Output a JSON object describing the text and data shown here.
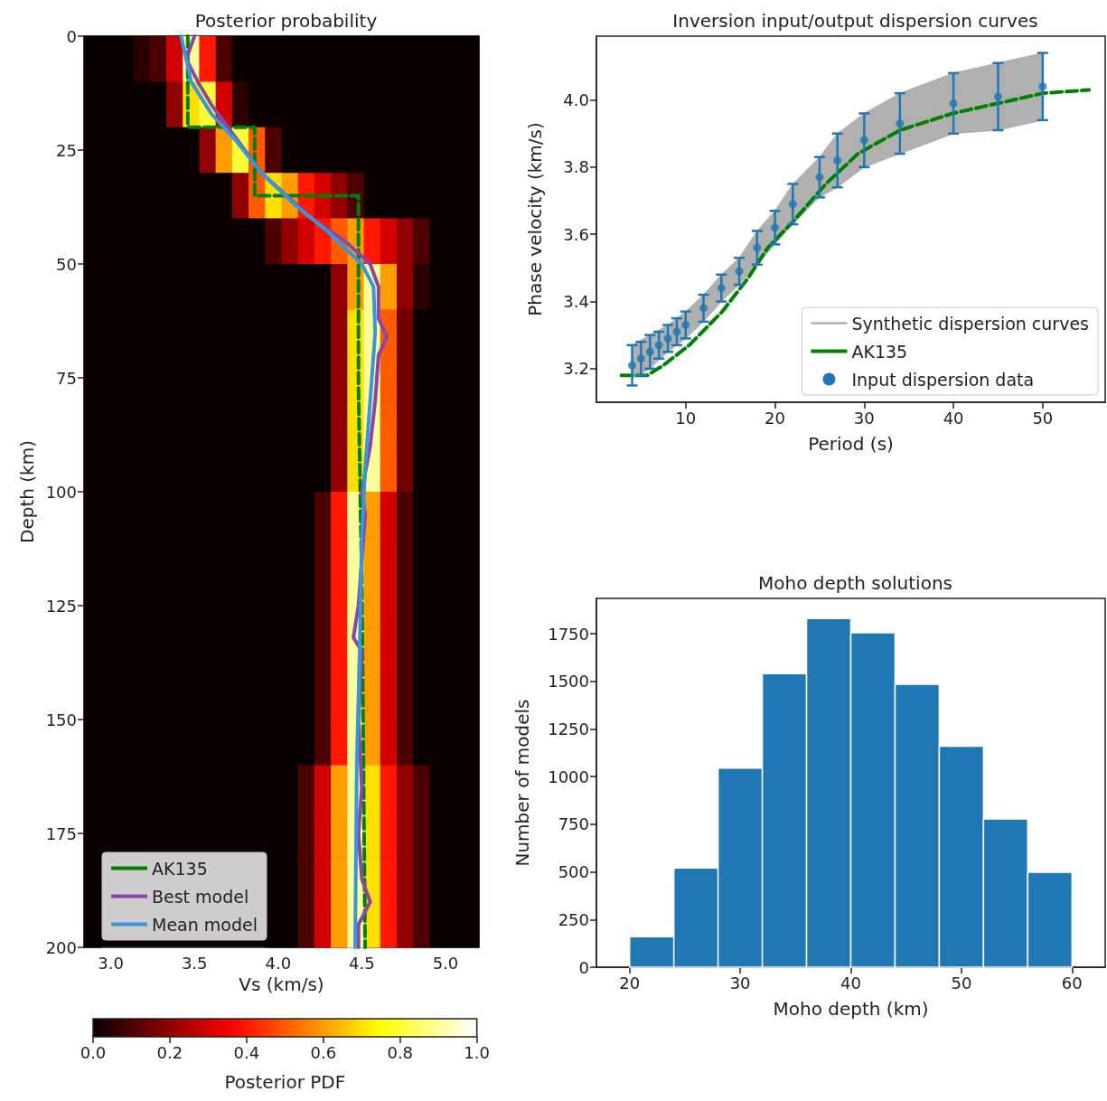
{
  "chart_data": [
    {
      "type": "heatmap",
      "title": "Posterior probability",
      "xlabel": "Vs (km/s)",
      "ylabel": "Depth (km)",
      "clabel": "Posterior PDF",
      "legend": "bottom left",
      "grid": false,
      "xlim": [
        2.84,
        5.2
      ],
      "ylim": [
        200,
        0
      ],
      "xticks": [
        {
          "value": 3,
          "label": "3.0"
        },
        {
          "value": 3.5,
          "label": "3.5"
        },
        {
          "value": 4,
          "label": "4.0"
        },
        {
          "value": 4.5,
          "label": "4.5"
        },
        {
          "value": 5,
          "label": "5.0"
        }
      ],
      "yticks": [
        0,
        25,
        50,
        75,
        100,
        125,
        150,
        175,
        200
      ],
      "clim": [
        0,
        1
      ],
      "cticks": [
        {
          "value": 0,
          "label": "0.0"
        },
        {
          "value": 0.2,
          "label": "0.2"
        },
        {
          "value": 0.4,
          "label": "0.4"
        },
        {
          "value": 0.6,
          "label": "0.6"
        },
        {
          "value": 0.8,
          "label": "0.8"
        },
        {
          "value": 1,
          "label": "1.0"
        }
      ],
      "cells": [
        [
          0,
          0,
          0,
          0.05,
          0.1,
          0.3,
          0.9,
          0.4,
          0.1,
          0,
          0,
          0,
          0,
          0,
          0,
          0,
          0,
          0,
          0,
          0,
          0,
          0,
          0,
          0
        ],
        [
          0,
          0,
          0,
          0,
          0,
          0.2,
          0.7,
          0.8,
          0.3,
          0.05,
          0,
          0,
          0,
          0,
          0,
          0,
          0,
          0,
          0,
          0,
          0,
          0,
          0,
          0
        ],
        [
          0,
          0,
          0,
          0,
          0,
          0,
          0,
          0.2,
          0.6,
          0.8,
          0.5,
          0.1,
          0,
          0,
          0,
          0,
          0,
          0,
          0,
          0,
          0,
          0,
          0,
          0
        ],
        [
          0,
          0,
          0,
          0,
          0,
          0,
          0,
          0,
          0,
          0.2,
          0.5,
          0.7,
          0.6,
          0.4,
          0.3,
          0.2,
          0.1,
          0,
          0,
          0,
          0,
          0,
          0,
          0
        ],
        [
          0,
          0,
          0,
          0,
          0,
          0,
          0,
          0,
          0,
          0,
          0,
          0.1,
          0.2,
          0.3,
          0.4,
          0.5,
          0.6,
          0.4,
          0.3,
          0.2,
          0.1,
          0,
          0,
          0
        ],
        [
          0,
          0,
          0,
          0,
          0,
          0,
          0,
          0,
          0,
          0,
          0,
          0,
          0,
          0,
          0,
          0.2,
          0.6,
          0.9,
          0.6,
          0.2,
          0.05,
          0,
          0,
          0
        ],
        [
          0,
          0,
          0,
          0,
          0,
          0,
          0,
          0,
          0,
          0,
          0,
          0,
          0,
          0,
          0,
          0.2,
          0.7,
          0.9,
          0.5,
          0.15,
          0,
          0,
          0,
          0
        ],
        [
          0,
          0,
          0,
          0,
          0,
          0,
          0,
          0,
          0,
          0,
          0,
          0,
          0,
          0,
          0,
          0.2,
          0.7,
          0.9,
          0.5,
          0.15,
          0,
          0,
          0,
          0
        ],
        [
          0,
          0,
          0,
          0,
          0,
          0,
          0,
          0,
          0,
          0,
          0,
          0,
          0,
          0,
          0,
          0.2,
          0.7,
          0.9,
          0.5,
          0.15,
          0,
          0,
          0,
          0
        ],
        [
          0,
          0,
          0,
          0,
          0,
          0,
          0,
          0,
          0,
          0,
          0,
          0,
          0,
          0,
          0,
          0.2,
          0.7,
          0.9,
          0.5,
          0.15,
          0,
          0,
          0,
          0
        ],
        [
          0,
          0,
          0,
          0,
          0,
          0,
          0,
          0,
          0,
          0,
          0,
          0,
          0,
          0,
          0.1,
          0.4,
          0.9,
          0.6,
          0.3,
          0.1,
          0,
          0,
          0,
          0
        ],
        [
          0,
          0,
          0,
          0,
          0,
          0,
          0,
          0,
          0,
          0,
          0,
          0,
          0,
          0,
          0.1,
          0.4,
          0.9,
          0.6,
          0.3,
          0.1,
          0,
          0,
          0,
          0
        ],
        [
          0,
          0,
          0,
          0,
          0,
          0,
          0,
          0,
          0,
          0,
          0,
          0,
          0,
          0,
          0.1,
          0.4,
          0.9,
          0.6,
          0.3,
          0.1,
          0,
          0,
          0,
          0
        ],
        [
          0,
          0,
          0,
          0,
          0,
          0,
          0,
          0,
          0,
          0,
          0,
          0,
          0,
          0,
          0.1,
          0.4,
          0.9,
          0.6,
          0.3,
          0.1,
          0,
          0,
          0,
          0
        ],
        [
          0,
          0,
          0,
          0,
          0,
          0,
          0,
          0,
          0,
          0,
          0,
          0,
          0,
          0,
          0.1,
          0.4,
          0.9,
          0.6,
          0.3,
          0.1,
          0,
          0,
          0,
          0
        ],
        [
          0,
          0,
          0,
          0,
          0,
          0,
          0,
          0,
          0,
          0,
          0,
          0,
          0,
          0,
          0.1,
          0.4,
          0.9,
          0.6,
          0.3,
          0.1,
          0,
          0,
          0,
          0
        ],
        [
          0,
          0,
          0,
          0,
          0,
          0,
          0,
          0,
          0,
          0,
          0,
          0,
          0,
          0.1,
          0.3,
          0.6,
          0.9,
          0.7,
          0.4,
          0.2,
          0.1,
          0,
          0,
          0
        ],
        [
          0,
          0,
          0,
          0,
          0,
          0,
          0,
          0,
          0,
          0,
          0,
          0,
          0,
          0.1,
          0.3,
          0.6,
          0.9,
          0.7,
          0.4,
          0.2,
          0.1,
          0,
          0,
          0
        ],
        [
          0,
          null,
          null,
          null,
          null,
          null,
          null,
          null,
          null,
          null,
          null,
          0,
          0,
          0.1,
          0.3,
          0.6,
          0.9,
          0.7,
          0.4,
          0.2,
          0.1,
          0,
          0,
          0
        ],
        [
          0,
          null,
          null,
          null,
          null,
          null,
          null,
          null,
          null,
          null,
          null,
          0,
          0,
          0.1,
          0.3,
          0.6,
          0.9,
          0.7,
          0.4,
          0.2,
          0.1,
          0,
          0,
          0
        ]
      ],
      "series": [
        {
          "name": "AK135",
          "type": "line",
          "color": "#008000",
          "line_style": "dashed",
          "x": [
            3.46,
            3.46,
            3.86,
            3.86,
            4.48,
            4.48,
            4.5,
            4.52
          ],
          "values": [
            0,
            20,
            20,
            35,
            35,
            77,
            120,
            200
          ]
        },
        {
          "name": "Best model",
          "type": "line",
          "color": "#8e44ad",
          "line_style": "solid",
          "x": [
            3.5,
            3.45,
            3.52,
            3.6,
            3.7,
            3.8,
            3.9,
            4.05,
            4.2,
            4.4,
            4.55,
            4.6,
            4.6,
            4.65,
            4.6,
            4.58,
            4.55,
            4.5,
            4.52,
            4.5,
            4.48,
            4.45,
            4.5,
            4.48,
            4.5,
            4.48,
            4.5,
            4.55,
            4.48,
            4.48
          ],
          "values": [
            0,
            5,
            10,
            15,
            20,
            25,
            30,
            35,
            40,
            45,
            50,
            55,
            62,
            66,
            70,
            80,
            90,
            100,
            105,
            115,
            125,
            132,
            135,
            150,
            165,
            175,
            185,
            190,
            195,
            200
          ]
        },
        {
          "name": "Mean model",
          "type": "line",
          "color": "#3498db",
          "line_style": "solid",
          "x": [
            3.42,
            3.48,
            3.6,
            3.75,
            3.9,
            4.1,
            4.3,
            4.5,
            4.57,
            4.58,
            4.55,
            4.52,
            4.5,
            4.49,
            4.47,
            4.46
          ],
          "values": [
            0,
            10,
            17,
            23,
            30,
            37,
            43,
            50,
            55,
            65,
            80,
            95,
            110,
            130,
            160,
            200
          ]
        }
      ]
    },
    {
      "type": "scatter",
      "title": "Inversion input/output dispersion curves",
      "xlabel": "Period (s)",
      "ylabel": "Phase velocity (km/s)",
      "legend": "bottom right",
      "grid": false,
      "xlim": [
        0,
        57
      ],
      "ylim": [
        3.1,
        4.19
      ],
      "xticks": [
        10,
        20,
        30,
        40,
        50
      ],
      "yticks": [
        {
          "value": 3.2,
          "label": "3.2"
        },
        {
          "value": 3.4,
          "label": "3.4"
        },
        {
          "value": 3.6,
          "label": "3.6"
        },
        {
          "value": 3.8,
          "label": "3.8"
        },
        {
          "value": 4,
          "label": "4.0"
        }
      ],
      "series": [
        {
          "name": "Synthetic dispersion curves",
          "type": "area",
          "color": "#b0b0b0",
          "x": [
            4,
            6,
            8,
            10,
            12,
            14,
            16,
            18,
            20,
            22,
            25,
            27,
            30,
            34,
            40,
            45,
            50
          ],
          "values": [
            null,
            null,
            null,
            null,
            null,
            null,
            null,
            null,
            null,
            null,
            null,
            null,
            null,
            null,
            null,
            null,
            null
          ],
          "lower": [
            3.17,
            3.2,
            3.25,
            3.29,
            3.34,
            3.4,
            3.45,
            3.51,
            3.57,
            3.63,
            3.71,
            3.74,
            3.8,
            3.84,
            3.9,
            3.91,
            3.94
          ],
          "upper": [
            3.27,
            3.3,
            3.33,
            3.37,
            3.42,
            3.48,
            3.53,
            3.61,
            3.67,
            3.75,
            3.83,
            3.9,
            3.96,
            4.02,
            4.08,
            4.11,
            4.14
          ]
        },
        {
          "name": "AK135",
          "type": "line",
          "color": "#008000",
          "line_style": "dashed",
          "x": [
            2.8,
            5.7,
            7.5,
            10.4,
            14.1,
            17,
            19.2,
            22.1,
            25.7,
            29.3,
            34,
            39.9,
            45,
            50,
            55.2
          ],
          "values": [
            3.18,
            3.18,
            3.21,
            3.27,
            3.37,
            3.47,
            3.56,
            3.64,
            3.75,
            3.84,
            3.91,
            3.96,
            3.99,
            4.02,
            4.03
          ]
        },
        {
          "name": "Input dispersion data",
          "type": "scatter",
          "color": "#1f77b4",
          "marker": "circle",
          "x": [
            4,
            5,
            6,
            7,
            8,
            9,
            10,
            12,
            14,
            16,
            18,
            20,
            22,
            25,
            27,
            30,
            34,
            40,
            45,
            50
          ],
          "values": [
            3.21,
            3.23,
            3.25,
            3.27,
            3.29,
            3.31,
            3.33,
            3.38,
            3.44,
            3.49,
            3.56,
            3.62,
            3.69,
            3.77,
            3.82,
            3.88,
            3.93,
            3.99,
            4.01,
            4.04
          ],
          "errors": [
            0.06,
            0.05,
            0.05,
            0.04,
            0.04,
            0.04,
            0.04,
            0.04,
            0.04,
            0.04,
            0.05,
            0.05,
            0.06,
            0.06,
            0.08,
            0.08,
            0.09,
            0.09,
            0.1,
            0.1
          ]
        }
      ]
    },
    {
      "type": "histogram",
      "title": "Moho depth solutions",
      "xlabel": "Moho depth (km)",
      "ylabel": "Number of models",
      "grid": false,
      "color": "#1f77b4",
      "bins": [
        20,
        24,
        28,
        32,
        36,
        40,
        44,
        48,
        52,
        56,
        60
      ],
      "values": [
        160,
        520,
        1045,
        1540,
        1830,
        1755,
        1485,
        1160,
        778,
        498
      ],
      "xlim": [
        17,
        63
      ],
      "ylim": [
        0,
        1935
      ],
      "xticks": [
        20,
        30,
        40,
        50,
        60
      ],
      "yticks": [
        0,
        250,
        500,
        750,
        1000,
        1250,
        1500,
        1750
      ]
    }
  ]
}
